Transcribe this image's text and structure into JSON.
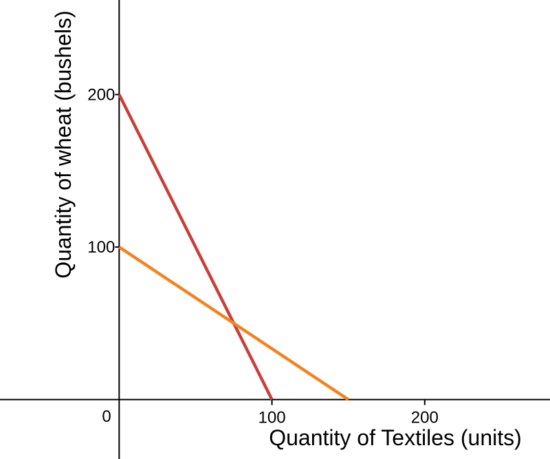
{
  "chart_data": {
    "type": "line",
    "xlabel": "Quantity of Textiles (units)",
    "ylabel": "Quantity of wheat (bushels)",
    "xlim": [
      -78,
      282
    ],
    "ylim": [
      -39,
      262
    ],
    "origin_label": "0",
    "x_ticks": [
      {
        "value": 100,
        "label": "100"
      },
      {
        "value": 200,
        "label": "200"
      }
    ],
    "y_ticks": [
      {
        "value": 100,
        "label": "100"
      },
      {
        "value": 200,
        "label": "200"
      }
    ],
    "grid": false,
    "legend": "none",
    "series": [
      {
        "color": "#c9403b",
        "x": [
          0,
          100
        ],
        "y": [
          200,
          0
        ]
      },
      {
        "color": "#f5821f",
        "x": [
          0,
          150
        ],
        "y": [
          100,
          0
        ]
      }
    ]
  }
}
